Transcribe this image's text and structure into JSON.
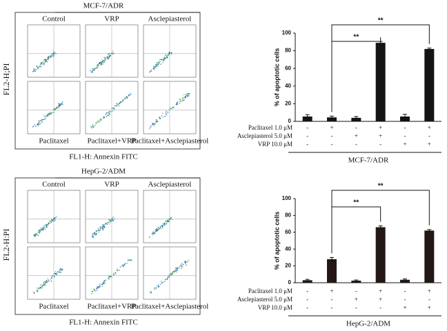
{
  "flow_panels": [
    {
      "title": "MCF-7/ADR",
      "columns": [
        "Control",
        "VRP",
        "Asclepiasterol"
      ],
      "row2": [
        "Paclitaxel",
        "Paclitaxel+VRP",
        "Paclitaxel+Asclepiasterol"
      ],
      "y_label": "FL2-H;PI",
      "x_label": "FL1-H: Annexin FITC"
    },
    {
      "title": "HepG-2/ADM",
      "columns": [
        "Control",
        "VRP",
        "Asclepiasterol"
      ],
      "row2": [
        "Paclitaxel",
        "Paclitaxel+VRP",
        "Paclitaxel+Asclepiasterol"
      ],
      "y_label": "FL2-H:PI",
      "x_label": "FL1-H: Annexin FITC"
    }
  ],
  "chart_data": [
    {
      "type": "bar",
      "y_label": "% of apoptotic cells",
      "caption": "MCF-7/ADR",
      "color": "#141414",
      "categories": [
        null,
        null,
        null,
        null,
        null,
        null
      ],
      "values": [
        5.5,
        4.5,
        4,
        89,
        5.5,
        82
      ],
      "errors": [
        2,
        1.5,
        1.5,
        1.5,
        2.5,
        1
      ],
      "ylim": [
        0,
        100
      ],
      "yticks": [
        0,
        20,
        40,
        60,
        80,
        100
      ],
      "conditions": [
        {
          "name": "Paclitaxel 1.0 μM",
          "marks": [
            "-",
            "+",
            "-",
            "+",
            "-",
            "+"
          ]
        },
        {
          "name": "Asclepiasterol  5.0 μM",
          "marks": [
            "-",
            "-",
            "+",
            "+",
            "-",
            "-"
          ]
        },
        {
          "name": "VRP  10.0 μM",
          "marks": [
            "-",
            "-",
            "-",
            "-",
            "+",
            "+"
          ]
        }
      ],
      "significance": [
        {
          "from": 1,
          "to": 3,
          "label": "**"
        },
        {
          "from": 1,
          "to": 5,
          "label": "**"
        }
      ]
    },
    {
      "type": "bar",
      "y_label": "% of apoptotic cells",
      "caption": "HepG-2/ADM",
      "color": "#231815",
      "categories": [
        null,
        null,
        null,
        null,
        null,
        null
      ],
      "values": [
        3,
        28,
        2.5,
        66,
        3.5,
        62
      ],
      "errors": [
        1,
        2,
        0.8,
        1.5,
        1,
        1.2
      ],
      "ylim": [
        0,
        100
      ],
      "yticks": [
        0,
        20,
        40,
        60,
        80,
        100
      ],
      "conditions": [
        {
          "name": "Paclitaxel 1.0 μM",
          "marks": [
            "-",
            "+",
            "-",
            "+",
            "-",
            "+"
          ]
        },
        {
          "name": "Asclepiasterol  5.0 μM",
          "marks": [
            "-",
            "-",
            "+",
            "+",
            "-",
            "-"
          ]
        },
        {
          "name": "VRP  10.0 μM",
          "marks": [
            "-",
            "-",
            "-",
            "-",
            "+",
            "+"
          ]
        }
      ],
      "significance": [
        {
          "from": 1,
          "to": 3,
          "label": "**"
        },
        {
          "from": 1,
          "to": 5,
          "label": "**"
        }
      ]
    }
  ]
}
